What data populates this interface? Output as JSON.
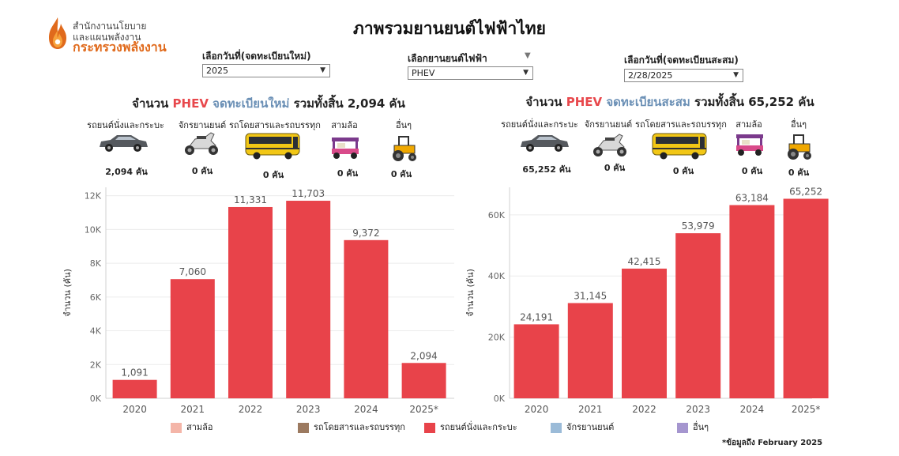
{
  "header": {
    "logo_line1": "สำนักงานนโยบาย",
    "logo_line2": "และแผนพลังงาน",
    "logo_line3": "กระทรวงพลังงาน",
    "title": "ภาพรวมยานยนต์ไฟฟ้าไทย"
  },
  "filters": {
    "new_reg_label": "เลือกวันที่(จดทะเบียนใหม่)",
    "new_reg_value": "2025",
    "ev_type_label": "เลือกยานยนต์ไฟฟ้า",
    "ev_type_value": "PHEV",
    "cum_label": "เลือกวันที่(จดทะเบียนสะสม)",
    "cum_value": "2/28/2025"
  },
  "left": {
    "title_prefix": "จำนวน ",
    "title_ev": "PHEV",
    "title_kind": "จดทะเบียนใหม่",
    "title_suffix": " รวมทั้งสิ้น 2,094 คัน",
    "vehicles": [
      {
        "label": "รถยนต์นั่งและกระบะ",
        "count": "2,094 คัน",
        "icon": "car-icon"
      },
      {
        "label": "จักรยานยนต์",
        "count": "0 คัน",
        "icon": "motorcycle-icon"
      },
      {
        "label": "รถโดยสารและรถบรรทุก",
        "count": "0 คัน",
        "icon": "bus-icon"
      },
      {
        "label": "สามล้อ",
        "count": "0 คัน",
        "icon": "tuktuk-icon"
      },
      {
        "label": "อื่นๆ",
        "count": "0 คัน",
        "icon": "tractor-icon"
      }
    ]
  },
  "right": {
    "title_prefix": "จำนวน ",
    "title_ev": "PHEV",
    "title_kind": "จดทะเบียนสะสม",
    "title_suffix": " รวมทั้งสิ้น 65,252 คัน",
    "vehicles": [
      {
        "label": "รถยนต์นั่งและกระบะ",
        "count": "65,252 คัน",
        "icon": "car-icon"
      },
      {
        "label": "จักรยานยนต์",
        "count": "0 คัน",
        "icon": "motorcycle-icon"
      },
      {
        "label": "รถโดยสารและรถบรรทุก",
        "count": "0 คัน",
        "icon": "bus-icon"
      },
      {
        "label": "สามล้อ",
        "count": "0 คัน",
        "icon": "tuktuk-icon"
      },
      {
        "label": "อื่นๆ",
        "count": "0 คัน",
        "icon": "tractor-icon"
      }
    ]
  },
  "chart_data": [
    {
      "type": "bar",
      "categories": [
        "2020",
        "2021",
        "2022",
        "2023",
        "2024",
        "2025*"
      ],
      "series": [
        {
          "values": [
            1091,
            7060,
            11331,
            11703,
            9372,
            2094
          ]
        }
      ],
      "value_labels": [
        "1,091",
        "7,060",
        "11,331",
        "11,703",
        "9,372",
        "2,094"
      ],
      "ylabel": "จำนวน (คัน)",
      "ylim": [
        0,
        12500
      ],
      "yticks": [
        0,
        2000,
        4000,
        6000,
        8000,
        10000,
        12000
      ],
      "ytick_labels": [
        "0K",
        "2K",
        "4K",
        "6K",
        "8K",
        "10K",
        "12K"
      ],
      "color": "#e8434a",
      "grid": true
    },
    {
      "type": "bar",
      "categories": [
        "2020",
        "2021",
        "2022",
        "2023",
        "2024",
        "2025*"
      ],
      "series": [
        {
          "values": [
            24191,
            31145,
            42415,
            53979,
            63184,
            65252
          ]
        }
      ],
      "value_labels": [
        "24,191",
        "31,145",
        "42,415",
        "53,979",
        "63,184",
        "65,252"
      ],
      "ylabel": "จำนวน (คัน)",
      "ylim": [
        0,
        69000
      ],
      "yticks": [
        0,
        20000,
        40000,
        60000
      ],
      "ytick_labels": [
        "0K",
        "20K",
        "40K",
        "60K"
      ],
      "color": "#e8434a",
      "grid": true
    }
  ],
  "legend": {
    "items": [
      {
        "label": "สามล้อ",
        "color": "#f4b5a8"
      },
      {
        "label": "รถโดยสารและรถบรรทุก",
        "color": "#9c7a60"
      },
      {
        "label": "รถยนต์นั่งและกระบะ",
        "color": "#e8434a"
      },
      {
        "label": "จักรยานยนต์",
        "color": "#9bbbd8"
      },
      {
        "label": "อื่นๆ",
        "color": "#a596cf"
      }
    ]
  },
  "footnote": "*ข้อมูลถึง February 2025"
}
